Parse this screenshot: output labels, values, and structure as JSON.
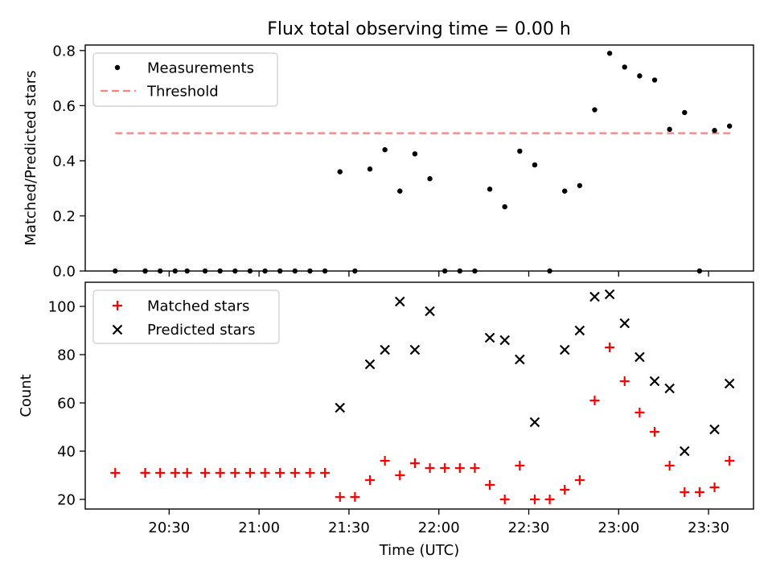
{
  "title": "Flux total observing time = 0.00 h",
  "colors": {
    "measurements": "#000000",
    "threshold": "#ff7f7f",
    "matched": "#ff0000",
    "predicted": "#000000"
  },
  "chart_data": [
    {
      "type": "scatter",
      "title": "Flux total observing time = 0.00 h",
      "ylabel": "Matched/Predicted stars",
      "xlabel": "",
      "xlim": [
        "20:02",
        "23:45"
      ],
      "ylim": [
        0,
        0.82
      ],
      "y_ticks": [
        0.0,
        0.2,
        0.4,
        0.6,
        0.8
      ],
      "y_tick_labels": [
        "0.0",
        "0.2",
        "0.4",
        "0.6",
        "0.8"
      ],
      "legend_position": "top-left",
      "legend": [
        "Measurements",
        "Threshold"
      ],
      "threshold": {
        "name": "Threshold",
        "value": 0.5,
        "x_start": "20:12",
        "x_end": "23:38"
      },
      "series": [
        {
          "name": "Measurements",
          "x": [
            "20:12",
            "20:22",
            "20:22",
            "20:27",
            "20:32",
            "20:36",
            "20:42",
            "20:47",
            "20:52",
            "20:57",
            "21:02",
            "21:07",
            "21:12",
            "21:17",
            "21:22",
            "21:27",
            "21:32",
            "21:37",
            "21:42",
            "21:47",
            "21:52",
            "21:57",
            "22:02",
            "22:07",
            "22:12",
            "22:17",
            "22:22",
            "22:27",
            "22:32",
            "22:37",
            "22:42",
            "22:47",
            "22:52",
            "22:57",
            "23:02",
            "23:07",
            "23:12",
            "23:17",
            "23:22",
            "23:27",
            "23:32",
            "23:37"
          ],
          "y": [
            0,
            0,
            0,
            0,
            0,
            0,
            0,
            0,
            0,
            0,
            0,
            0,
            0,
            0,
            0,
            0.36,
            0,
            0.37,
            0.44,
            0.29,
            0.425,
            0.335,
            0,
            0,
            0,
            0.297,
            0.233,
            0.435,
            0.385,
            0,
            0.29,
            0.31,
            0.585,
            0.79,
            0.74,
            0.708,
            0.693,
            0.514,
            0.575,
            0,
            0.51,
            0.526
          ]
        }
      ]
    },
    {
      "type": "scatter",
      "xlabel": "Time (UTC)",
      "ylabel": "Count",
      "xlim": [
        "20:02",
        "23:45"
      ],
      "ylim": [
        16,
        110
      ],
      "x_ticks": [
        "20:30",
        "21:00",
        "21:30",
        "22:00",
        "22:30",
        "23:00",
        "23:30"
      ],
      "y_ticks": [
        20,
        40,
        60,
        80,
        100
      ],
      "y_tick_labels": [
        "20",
        "40",
        "60",
        "80",
        "100"
      ],
      "legend_position": "top-left",
      "legend": [
        "Matched stars",
        "Predicted stars"
      ],
      "series": [
        {
          "name": "Matched stars",
          "marker": "+",
          "x": [
            "20:12",
            "20:22",
            "20:22",
            "20:27",
            "20:32",
            "20:36",
            "20:42",
            "20:47",
            "20:52",
            "20:57",
            "21:02",
            "21:07",
            "21:12",
            "21:17",
            "21:22",
            "21:27",
            "21:32",
            "21:37",
            "21:42",
            "21:47",
            "21:52",
            "21:57",
            "22:02",
            "22:07",
            "22:12",
            "22:17",
            "22:22",
            "22:27",
            "22:32",
            "22:37",
            "22:42",
            "22:47",
            "22:52",
            "22:57",
            "23:02",
            "23:07",
            "23:12",
            "23:17",
            "23:22",
            "23:27",
            "23:32",
            "23:37"
          ],
          "y": [
            31,
            31,
            31,
            31,
            31,
            31,
            31,
            31,
            31,
            31,
            31,
            31,
            31,
            31,
            31,
            21,
            21,
            28,
            36,
            30,
            35,
            33,
            33,
            33,
            33,
            26,
            20,
            34,
            20,
            20,
            24,
            28,
            61,
            83,
            69,
            56,
            48,
            34,
            23,
            23,
            25,
            36
          ]
        },
        {
          "name": "Predicted stars",
          "marker": "x",
          "x": [
            "21:27",
            "21:37",
            "21:42",
            "21:47",
            "21:52",
            "21:57",
            "22:17",
            "22:22",
            "22:27",
            "22:32",
            "22:42",
            "22:47",
            "22:52",
            "22:57",
            "23:02",
            "23:07",
            "23:12",
            "23:17",
            "23:22",
            "23:32",
            "23:37"
          ],
          "y": [
            58,
            76,
            82,
            102,
            82,
            98,
            87,
            86,
            78,
            52,
            82,
            90,
            104,
            105,
            93,
            79,
            69,
            66,
            40,
            49,
            68
          ]
        }
      ]
    }
  ]
}
